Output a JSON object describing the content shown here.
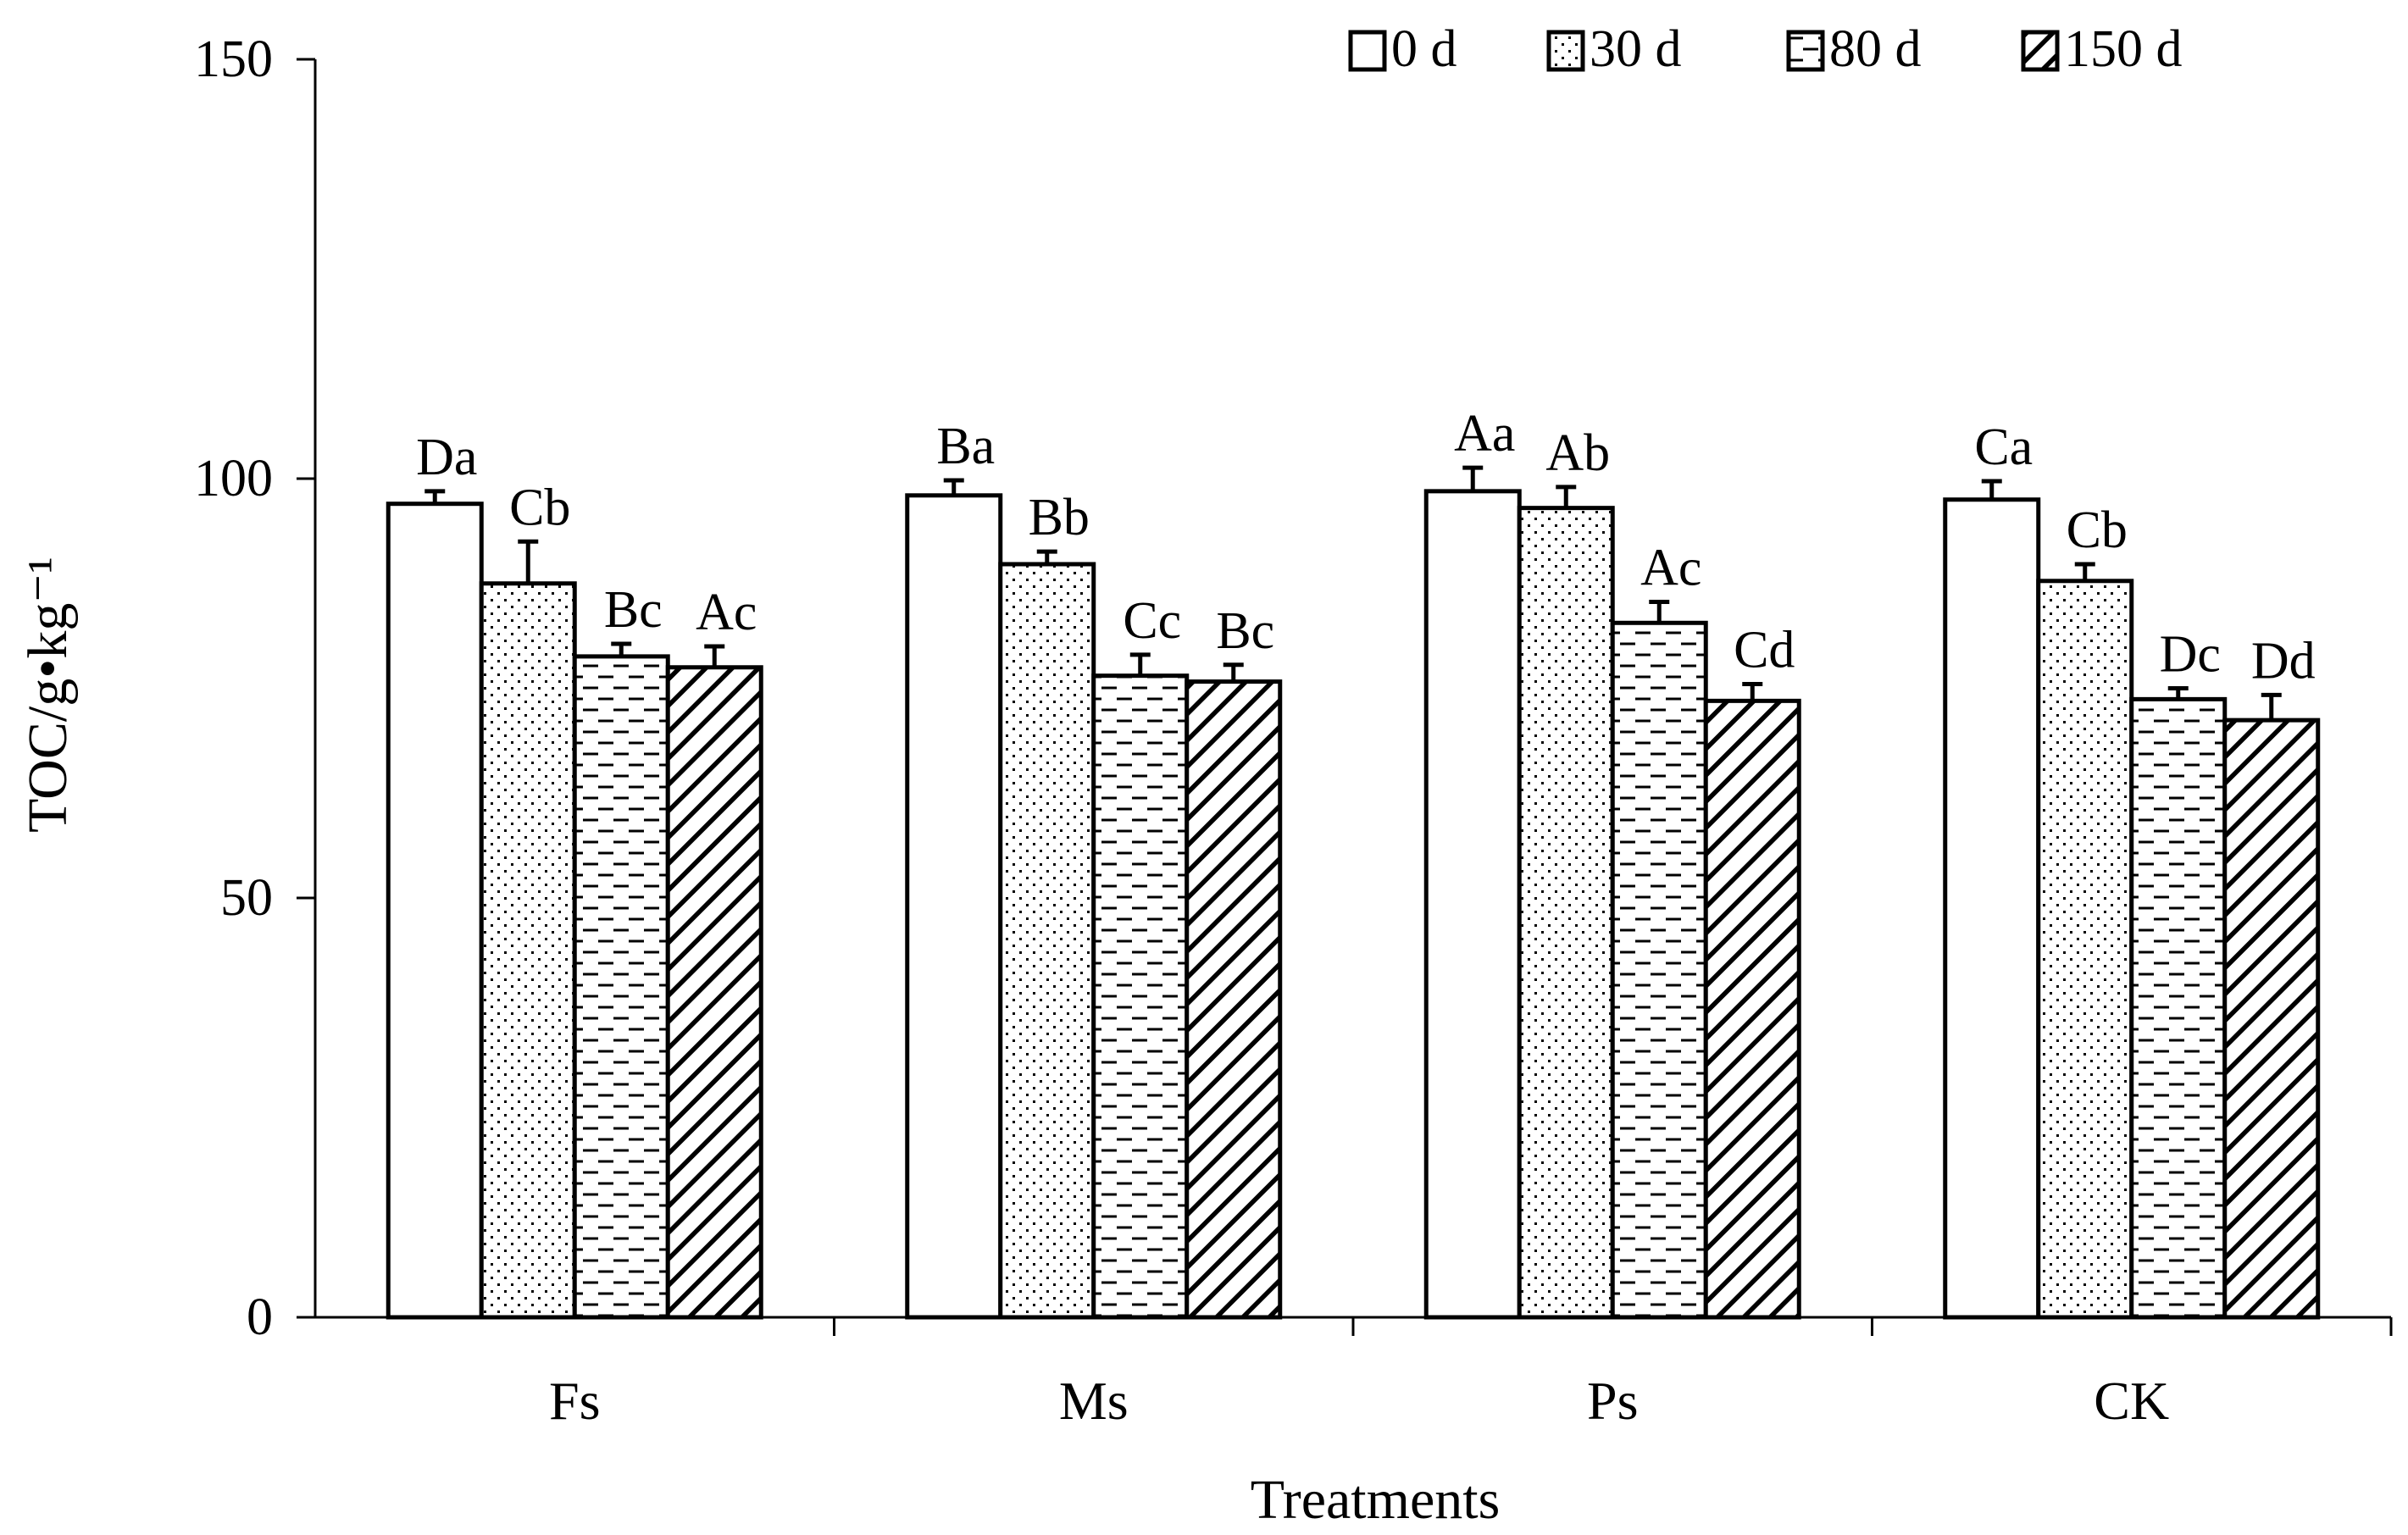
{
  "chart_data": {
    "type": "bar",
    "title": "",
    "xlabel": "Treatments",
    "ylabel": "TOC/g•kg⁻¹",
    "ylim": [
      0,
      150
    ],
    "yticks": [
      0,
      50,
      100,
      150
    ],
    "grid": false,
    "legend_position": "top-right",
    "categories": [
      "Fs",
      "Ms",
      "Ps",
      "CK"
    ],
    "series": [
      {
        "name": "0 d",
        "pattern": "open",
        "values": [
          97.0,
          98.0,
          98.5,
          97.5
        ],
        "errors": [
          1.5,
          1.8,
          2.8,
          2.2
        ],
        "labels": [
          "Da",
          "Ba",
          "Aa",
          "Ca"
        ]
      },
      {
        "name": "30 d",
        "pattern": "dots",
        "values": [
          87.5,
          89.8,
          96.5,
          87.8
        ],
        "errors": [
          5.0,
          1.5,
          2.5,
          2.0
        ],
        "labels": [
          "Cb",
          "Bb",
          "Ab",
          "Cb"
        ]
      },
      {
        "name": "80 d",
        "pattern": "dashes",
        "values": [
          78.8,
          76.5,
          82.8,
          73.7
        ],
        "errors": [
          1.5,
          2.5,
          2.5,
          1.3
        ],
        "labels": [
          "Bc",
          "Cc",
          "Ac",
          "Dc"
        ]
      },
      {
        "name": "150 d",
        "pattern": "diagonal",
        "values": [
          77.5,
          75.8,
          73.5,
          71.2
        ],
        "errors": [
          2.5,
          2.0,
          2.0,
          3.0
        ],
        "labels": [
          "Ac",
          "Bc",
          "Cd",
          "Dd"
        ]
      }
    ],
    "colors": {
      "stroke": "#000000",
      "fill": "#ffffff"
    }
  }
}
